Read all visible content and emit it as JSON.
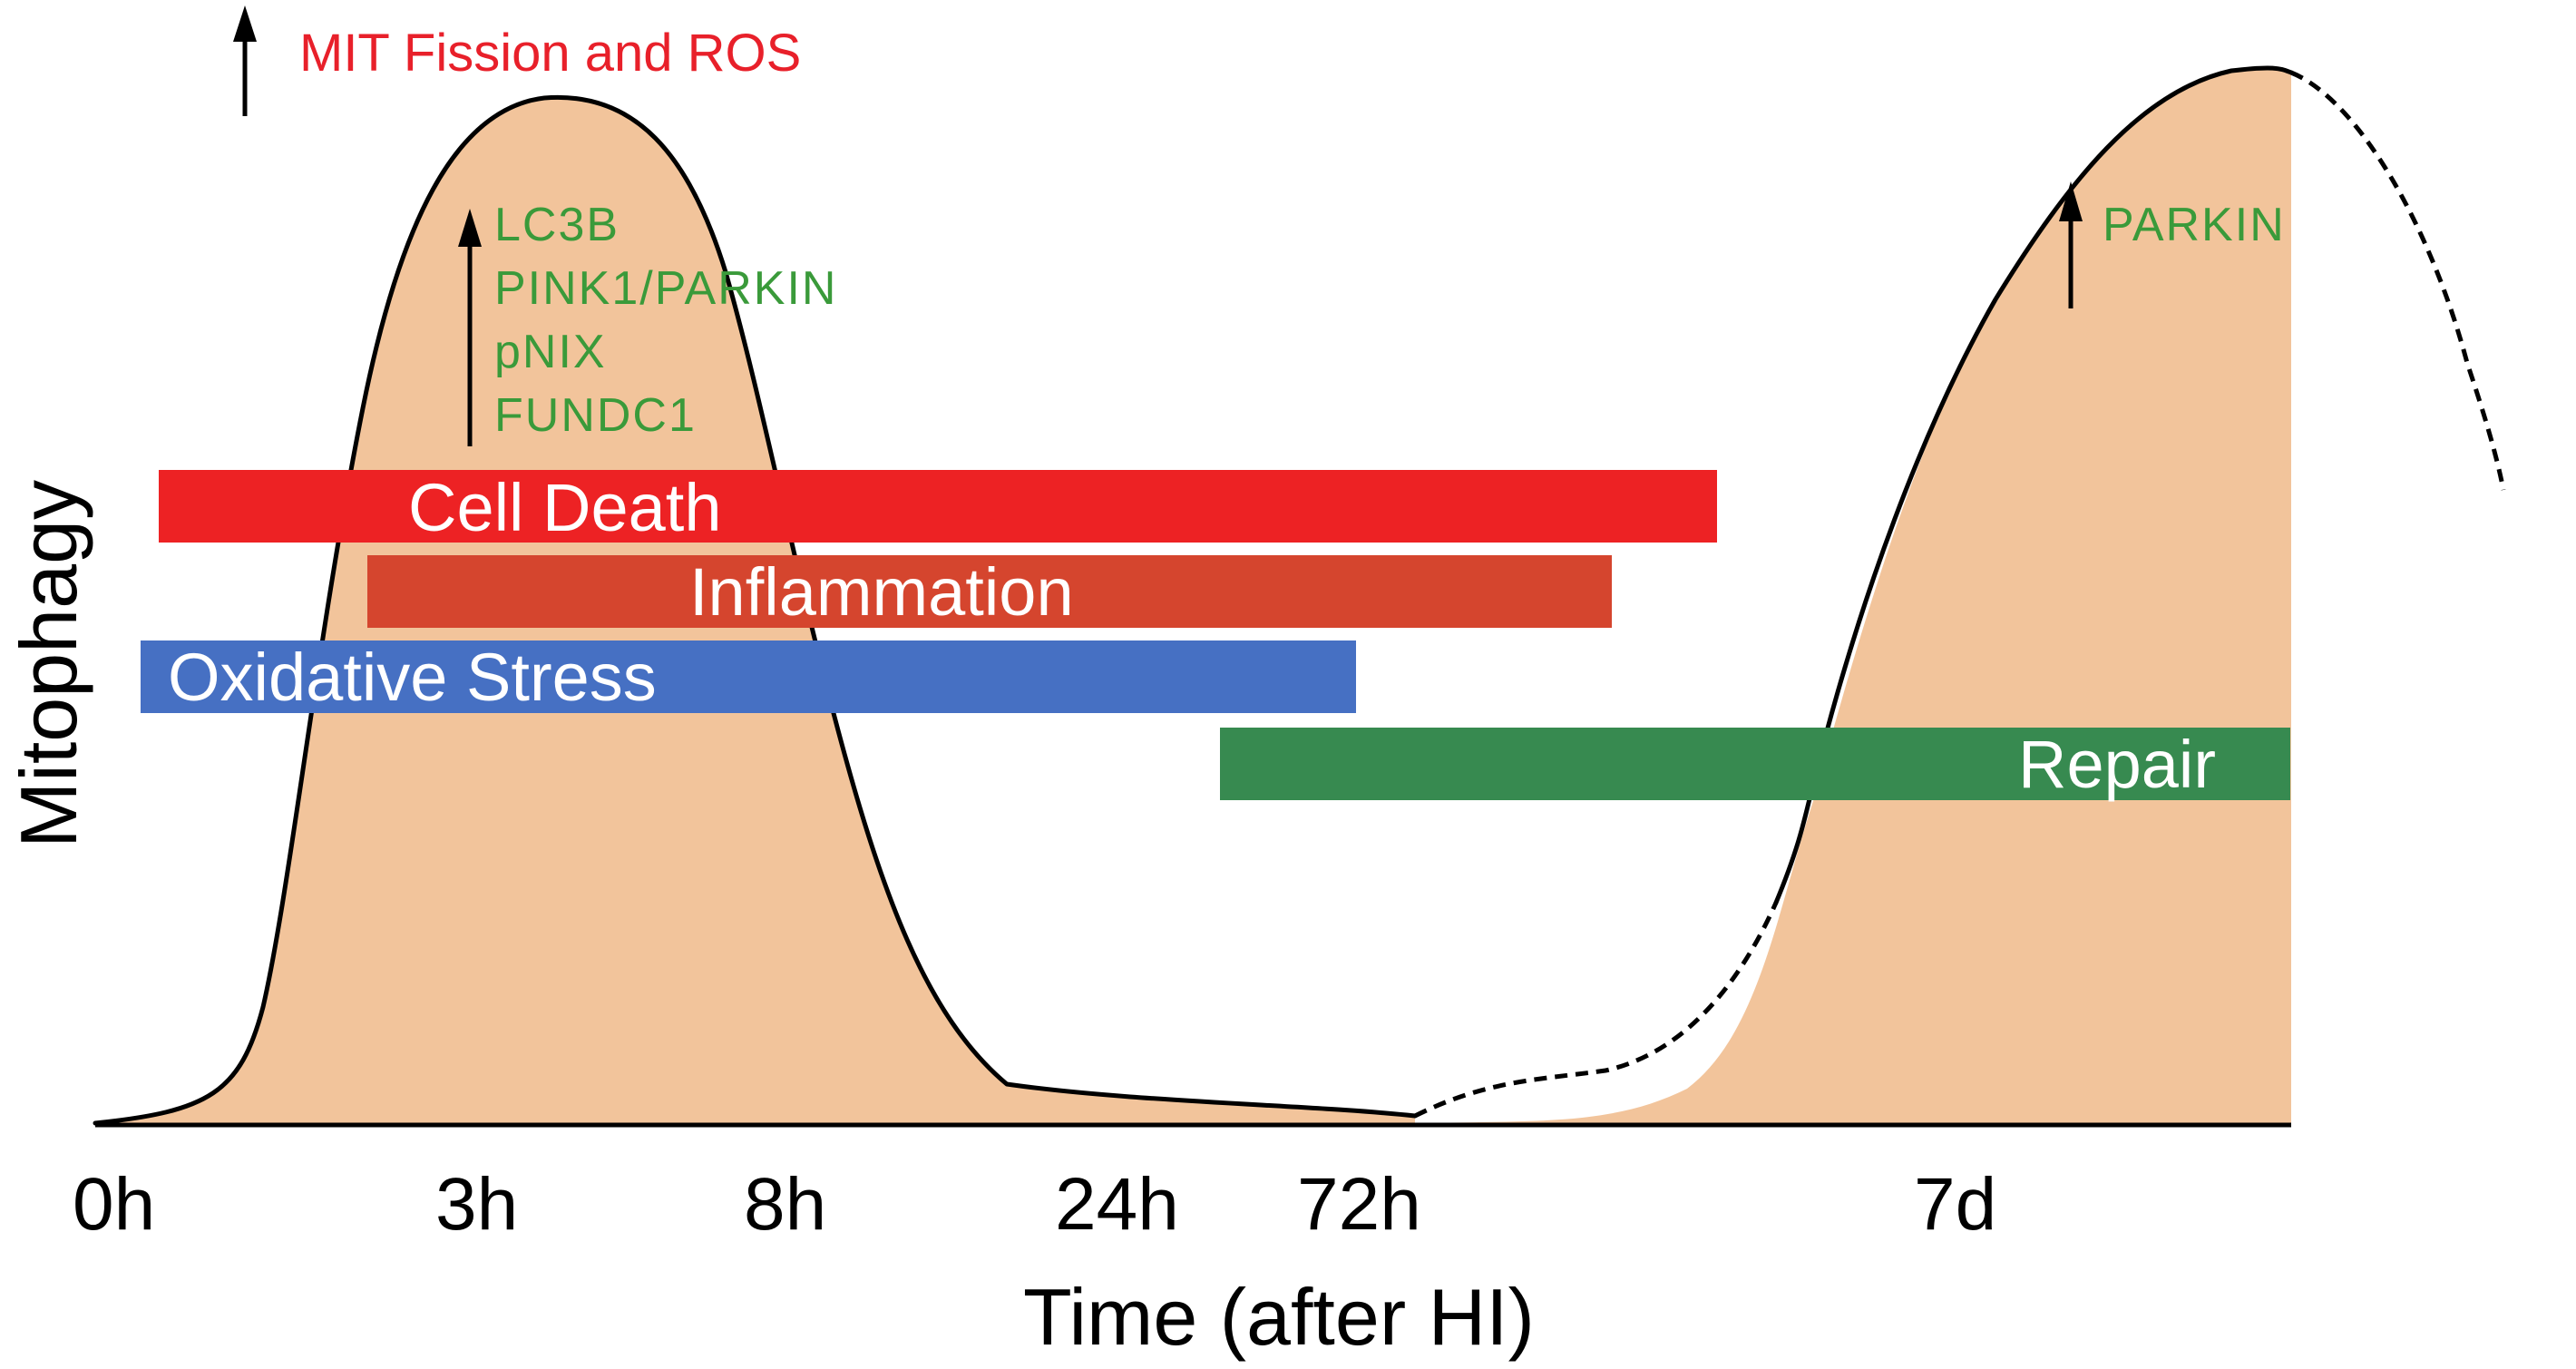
{
  "y_axis_label": "Mitophagy",
  "x_axis_label": "Time (after HI)",
  "time_points": [
    "0h",
    "3h",
    "8h",
    "24h",
    "72h",
    "7d"
  ],
  "top_annotation": {
    "label": "MIT Fission and ROS",
    "color": "#e8202a"
  },
  "early_markers": {
    "items": [
      "LC3B",
      "PINK1/PARKIN",
      "pNIX",
      "FUNDC1"
    ],
    "color": "#3a9a3a"
  },
  "late_marker": {
    "label": "PARKIN",
    "color": "#3a9a3a"
  },
  "processes": [
    {
      "label": "Cell Death",
      "color": "#ed2224"
    },
    {
      "label": "Inflammation",
      "color": "#d5452e"
    },
    {
      "label": "Oxidative Stress",
      "color": "#4670c3"
    },
    {
      "label": "Repair",
      "color": "#378a50"
    }
  ],
  "curve_color": "#f2c49b"
}
